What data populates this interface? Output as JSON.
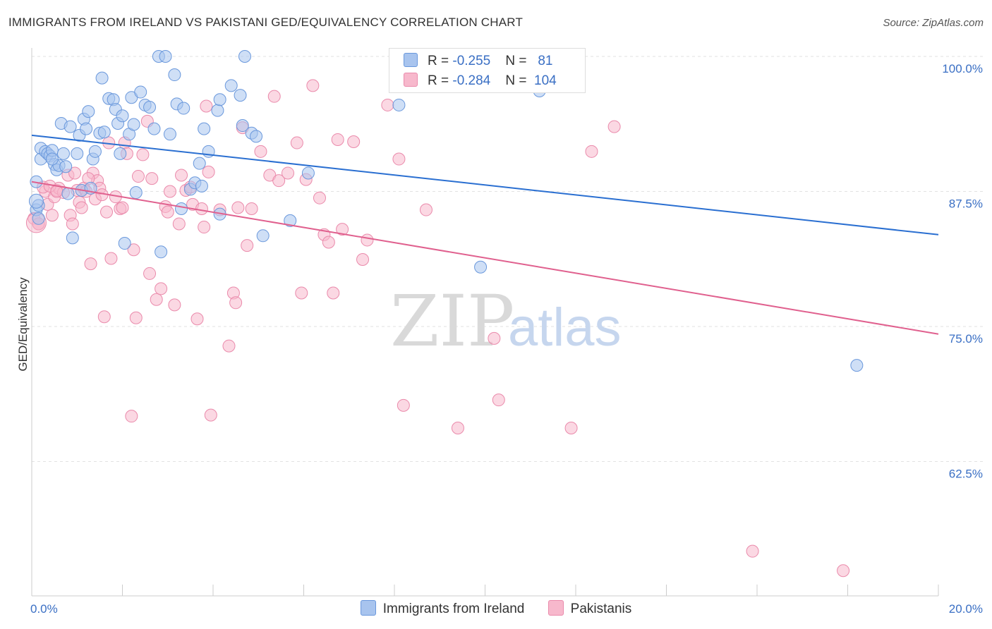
{
  "header": {
    "title": "IMMIGRANTS FROM IRELAND VS PAKISTANI GED/EQUIVALENCY CORRELATION CHART",
    "source": "Source: ZipAtlas.com"
  },
  "legend": {
    "series1": {
      "r_label": "R = ",
      "r_value": "-0.255",
      "n_label": "N = ",
      "n_value": "81"
    },
    "series2": {
      "r_label": "R = ",
      "r_value": "-0.284",
      "n_label": "N = ",
      "n_value": "104"
    }
  },
  "watermark": {
    "zip": "ZIP",
    "atlas": "atlas"
  },
  "colors": {
    "blue_fill": "#a8c4ee",
    "blue_stroke": "#6a98dc",
    "blue_line": "#2a6fd1",
    "pink_fill": "#f7b8cc",
    "pink_stroke": "#ea8aab",
    "pink_line": "#e0608e",
    "tick_label": "#3a6fc4"
  },
  "chart_data": {
    "type": "scatter",
    "title": "IMMIGRANTS FROM IRELAND VS PAKISTANI GED/EQUIVALENCY CORRELATION CHART",
    "xlabel": "",
    "ylabel": "GED/Equivalency",
    "xlim": [
      0,
      20
    ],
    "ylim": [
      50,
      100
    ],
    "x_tick_labels": [
      "0.0%",
      "20.0%"
    ],
    "y_ticks": [
      62.5,
      75.0,
      87.5,
      100.0
    ],
    "y_tick_labels": [
      "62.5%",
      "75.0%",
      "87.5%",
      "100.0%"
    ],
    "grid": true,
    "legend_position": "top-center",
    "series": [
      {
        "name": "Immigrants from Ireland",
        "trend": {
          "x": [
            0,
            20
          ],
          "y": [
            92.7,
            83.5
          ]
        },
        "points": [
          [
            0.1,
            88.4
          ],
          [
            0.1,
            85.8
          ],
          [
            0.15,
            85.0
          ],
          [
            0.2,
            91.5
          ],
          [
            0.2,
            90.5
          ],
          [
            0.3,
            91.2
          ],
          [
            0.35,
            91.0
          ],
          [
            0.4,
            90.8
          ],
          [
            0.45,
            91.3
          ],
          [
            0.5,
            90.0
          ],
          [
            0.55,
            89.5
          ],
          [
            0.6,
            89.9
          ],
          [
            0.65,
            93.8
          ],
          [
            0.7,
            91.0
          ],
          [
            0.75,
            89.8
          ],
          [
            0.8,
            87.3
          ],
          [
            0.85,
            93.5
          ],
          [
            0.9,
            83.2
          ],
          [
            1.0,
            91.0
          ],
          [
            1.05,
            92.7
          ],
          [
            1.1,
            87.6
          ],
          [
            1.15,
            94.2
          ],
          [
            1.2,
            93.3
          ],
          [
            1.25,
            94.9
          ],
          [
            1.3,
            87.8
          ],
          [
            1.35,
            90.5
          ],
          [
            1.4,
            91.2
          ],
          [
            1.5,
            92.9
          ],
          [
            1.55,
            98.0
          ],
          [
            1.6,
            93.0
          ],
          [
            1.7,
            96.1
          ],
          [
            1.8,
            96.0
          ],
          [
            1.85,
            95.1
          ],
          [
            1.9,
            93.8
          ],
          [
            1.95,
            91.0
          ],
          [
            2.0,
            94.5
          ],
          [
            2.05,
            82.7
          ],
          [
            2.15,
            92.8
          ],
          [
            2.2,
            96.2
          ],
          [
            2.25,
            93.7
          ],
          [
            2.3,
            87.4
          ],
          [
            2.4,
            96.7
          ],
          [
            2.5,
            95.5
          ],
          [
            2.6,
            95.3
          ],
          [
            2.7,
            93.3
          ],
          [
            2.8,
            100.0
          ],
          [
            2.85,
            81.9
          ],
          [
            2.95,
            100.0
          ],
          [
            3.05,
            92.8
          ],
          [
            3.15,
            98.3
          ],
          [
            3.2,
            95.6
          ],
          [
            3.3,
            85.9
          ],
          [
            3.35,
            95.2
          ],
          [
            3.5,
            87.7
          ],
          [
            3.6,
            88.3
          ],
          [
            3.7,
            90.1
          ],
          [
            3.75,
            88.0
          ],
          [
            3.8,
            93.3
          ],
          [
            3.9,
            91.2
          ],
          [
            4.15,
            85.4
          ],
          [
            4.1,
            95.0
          ],
          [
            4.15,
            96.0
          ],
          [
            4.4,
            97.3
          ],
          [
            4.6,
            96.4
          ],
          [
            4.65,
            93.6
          ],
          [
            4.85,
            92.9
          ],
          [
            4.95,
            92.6
          ],
          [
            4.7,
            100.0
          ],
          [
            5.1,
            83.4
          ],
          [
            5.7,
            84.8
          ],
          [
            6.1,
            89.2
          ],
          [
            8.1,
            95.5
          ],
          [
            9.9,
            80.5
          ],
          [
            11.2,
            96.8
          ],
          [
            18.2,
            71.4
          ],
          [
            0.45,
            90.5
          ],
          [
            0.15,
            86.2
          ]
        ]
      },
      {
        "name": "Pakistanis",
        "trend": {
          "x": [
            0,
            20
          ],
          "y": [
            88.4,
            74.3
          ]
        },
        "points": [
          [
            0.05,
            85.0
          ],
          [
            0.15,
            84.5
          ],
          [
            0.3,
            87.5
          ],
          [
            0.35,
            86.3
          ],
          [
            0.45,
            85.3
          ],
          [
            0.5,
            87.0
          ],
          [
            0.55,
            87.6
          ],
          [
            0.6,
            87.8
          ],
          [
            0.7,
            87.4
          ],
          [
            0.8,
            89.0
          ],
          [
            0.85,
            85.3
          ],
          [
            0.9,
            84.5
          ],
          [
            1.0,
            87.6
          ],
          [
            1.05,
            86.5
          ],
          [
            1.1,
            86.0
          ],
          [
            1.15,
            87.8
          ],
          [
            1.2,
            87.5
          ],
          [
            1.3,
            80.8
          ],
          [
            1.35,
            89.2
          ],
          [
            1.4,
            86.8
          ],
          [
            1.45,
            88.5
          ],
          [
            1.5,
            87.8
          ],
          [
            1.55,
            87.2
          ],
          [
            1.6,
            75.9
          ],
          [
            1.7,
            92.0
          ],
          [
            1.75,
            81.3
          ],
          [
            1.85,
            87.0
          ],
          [
            1.95,
            85.9
          ],
          [
            2.0,
            86.0
          ],
          [
            2.05,
            92.0
          ],
          [
            2.1,
            91.0
          ],
          [
            2.2,
            66.7
          ],
          [
            2.3,
            75.8
          ],
          [
            2.35,
            88.9
          ],
          [
            2.45,
            90.9
          ],
          [
            2.55,
            94.0
          ],
          [
            2.65,
            88.7
          ],
          [
            2.75,
            77.5
          ],
          [
            2.85,
            78.5
          ],
          [
            2.95,
            86.1
          ],
          [
            3.0,
            85.6
          ],
          [
            3.05,
            87.5
          ],
          [
            3.15,
            77.0
          ],
          [
            3.3,
            89.0
          ],
          [
            3.4,
            87.6
          ],
          [
            3.5,
            87.9
          ],
          [
            3.55,
            86.3
          ],
          [
            3.65,
            75.7
          ],
          [
            3.75,
            85.9
          ],
          [
            3.8,
            84.2
          ],
          [
            3.85,
            95.4
          ],
          [
            3.9,
            89.3
          ],
          [
            3.95,
            66.8
          ],
          [
            4.15,
            85.8
          ],
          [
            4.35,
            73.2
          ],
          [
            4.45,
            78.1
          ],
          [
            4.5,
            77.2
          ],
          [
            4.55,
            86.0
          ],
          [
            4.65,
            93.4
          ],
          [
            4.75,
            82.5
          ],
          [
            4.85,
            85.9
          ],
          [
            5.05,
            91.2
          ],
          [
            5.25,
            89.0
          ],
          [
            5.35,
            96.3
          ],
          [
            5.45,
            88.5
          ],
          [
            5.65,
            89.2
          ],
          [
            5.85,
            92.0
          ],
          [
            5.95,
            78.1
          ],
          [
            6.05,
            88.6
          ],
          [
            6.2,
            97.3
          ],
          [
            6.35,
            86.9
          ],
          [
            6.45,
            83.5
          ],
          [
            6.55,
            82.8
          ],
          [
            6.65,
            78.1
          ],
          [
            6.75,
            92.3
          ],
          [
            7.1,
            92.1
          ],
          [
            7.3,
            81.2
          ],
          [
            7.4,
            83.0
          ],
          [
            7.85,
            95.5
          ],
          [
            8.1,
            90.5
          ],
          [
            8.2,
            67.7
          ],
          [
            8.55,
            100.0
          ],
          [
            9.4,
            65.6
          ],
          [
            9.65,
            97.9
          ],
          [
            10.2,
            73.9
          ],
          [
            10.3,
            68.2
          ],
          [
            11.5,
            100.0
          ],
          [
            11.9,
            65.6
          ],
          [
            12.35,
            91.2
          ],
          [
            12.85,
            93.5
          ],
          [
            15.9,
            54.2
          ],
          [
            17.9,
            52.4
          ],
          [
            8.7,
            85.8
          ],
          [
            0.25,
            87.9
          ],
          [
            0.4,
            88.0
          ],
          [
            0.95,
            89.2
          ],
          [
            1.25,
            88.7
          ],
          [
            1.65,
            85.6
          ],
          [
            2.25,
            82.1
          ],
          [
            3.25,
            84.5
          ],
          [
            6.85,
            84.0
          ],
          [
            2.6,
            79.9
          ],
          [
            0.15,
            84.5
          ],
          [
            0.55,
            87.5
          ]
        ]
      }
    ]
  },
  "bottom_legend": {
    "item1": "Immigrants from Ireland",
    "item2": "Pakistanis"
  }
}
